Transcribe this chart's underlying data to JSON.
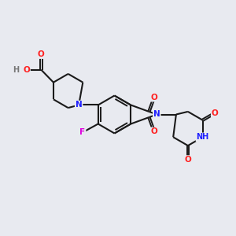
{
  "bg_color": "#e8eaf0",
  "bond_color": "#1a1a1a",
  "atom_colors": {
    "N": "#2020ff",
    "O": "#ff2020",
    "F": "#dd00dd",
    "H": "#777777",
    "C": "#1a1a1a"
  },
  "figsize": [
    3.0,
    3.0
  ],
  "dpi": 100,
  "xlim": [
    0,
    10
  ],
  "ylim": [
    0,
    10
  ]
}
